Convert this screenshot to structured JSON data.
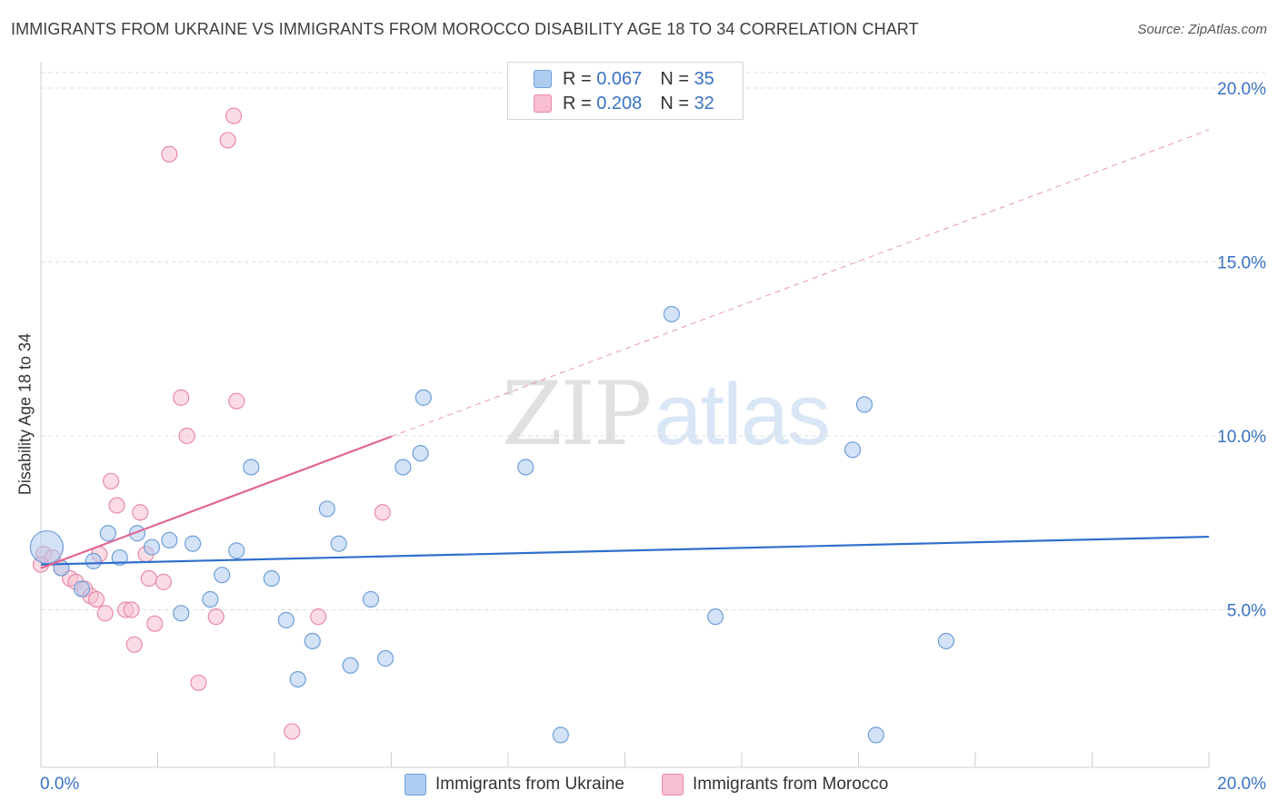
{
  "title": "IMMIGRANTS FROM UKRAINE VS IMMIGRANTS FROM MOROCCO DISABILITY AGE 18 TO 34 CORRELATION CHART",
  "source": "Source: ZipAtlas.com",
  "watermark": {
    "zip": "ZIP",
    "atlas": "atlas"
  },
  "colors": {
    "ukraine_fill": "#aecbf0",
    "ukraine_stroke": "#6f9fd8",
    "ukraine_line": "#2f6fcc",
    "morocco_fill": "#f7bfd0",
    "morocco_stroke": "#e88aa8",
    "morocco_line": "#e06694",
    "axis_text": "#3a72c4",
    "grid": "#dcdcdc"
  },
  "legend": {
    "rows": [
      {
        "r_label": "R = ",
        "r_value": "0.067",
        "n_label": "N = ",
        "n_value": "35"
      },
      {
        "r_label": "R = ",
        "r_value": "0.208",
        "n_label": "N = ",
        "n_value": "32"
      }
    ]
  },
  "bottom_legend": {
    "ukraine": "Immigrants from Ukraine",
    "morocco": "Immigrants from Morocco"
  },
  "chart_data": {
    "type": "scatter",
    "title": "IMMIGRANTS FROM UKRAINE VS IMMIGRANTS FROM MOROCCO DISABILITY AGE 18 TO 34 CORRELATION CHART",
    "ylabel": "Disability Age 18 to 34",
    "xlabel": "",
    "xlim": [
      0,
      20
    ],
    "ylim": [
      0,
      20
    ],
    "x_tick_labels": [
      {
        "value": 0,
        "label": "0.0%"
      },
      {
        "value": 20,
        "label": "20.0%"
      }
    ],
    "y_tick_labels": [
      {
        "value": 5,
        "label": "5.0%"
      },
      {
        "value": 10,
        "label": "10.0%"
      },
      {
        "value": 15,
        "label": "15.0%"
      },
      {
        "value": 20,
        "label": "20.0%"
      }
    ],
    "grid": true,
    "legend_position": "top-center",
    "series": [
      {
        "name": "Immigrants from Ukraine",
        "r": 0.067,
        "n": 35,
        "trend": {
          "x": [
            0,
            20
          ],
          "y": [
            6.3,
            7.1
          ],
          "dashed_from": null
        },
        "points": [
          {
            "x": 0.1,
            "y": 6.8,
            "big": true
          },
          {
            "x": 0.35,
            "y": 6.2
          },
          {
            "x": 0.7,
            "y": 5.6
          },
          {
            "x": 0.9,
            "y": 6.4
          },
          {
            "x": 1.15,
            "y": 7.2
          },
          {
            "x": 1.35,
            "y": 6.5
          },
          {
            "x": 1.65,
            "y": 7.2
          },
          {
            "x": 1.9,
            "y": 6.8
          },
          {
            "x": 2.2,
            "y": 7.0
          },
          {
            "x": 2.4,
            "y": 4.9
          },
          {
            "x": 2.6,
            "y": 6.9
          },
          {
            "x": 2.9,
            "y": 5.3
          },
          {
            "x": 3.1,
            "y": 6.0
          },
          {
            "x": 3.35,
            "y": 6.7
          },
          {
            "x": 3.6,
            "y": 9.1
          },
          {
            "x": 3.95,
            "y": 5.9
          },
          {
            "x": 4.2,
            "y": 4.7
          },
          {
            "x": 4.4,
            "y": 3.0
          },
          {
            "x": 4.65,
            "y": 4.1
          },
          {
            "x": 4.9,
            "y": 7.9
          },
          {
            "x": 5.1,
            "y": 6.9
          },
          {
            "x": 5.3,
            "y": 3.4
          },
          {
            "x": 5.65,
            "y": 5.3
          },
          {
            "x": 5.9,
            "y": 3.6
          },
          {
            "x": 6.2,
            "y": 9.1
          },
          {
            "x": 6.5,
            "y": 9.5
          },
          {
            "x": 6.55,
            "y": 11.1
          },
          {
            "x": 8.3,
            "y": 9.1
          },
          {
            "x": 8.9,
            "y": 1.4
          },
          {
            "x": 10.8,
            "y": 13.5
          },
          {
            "x": 11.55,
            "y": 4.8
          },
          {
            "x": 13.9,
            "y": 9.6
          },
          {
            "x": 14.1,
            "y": 10.9
          },
          {
            "x": 14.3,
            "y": 1.4
          },
          {
            "x": 15.5,
            "y": 4.1
          }
        ]
      },
      {
        "name": "Immigrants from Morocco",
        "r": 0.208,
        "n": 32,
        "trend": {
          "x": [
            0,
            20
          ],
          "y": [
            6.2,
            18.8
          ],
          "dashed_from": 6.0
        },
        "points": [
          {
            "x": 0.05,
            "y": 6.6
          },
          {
            "x": 0.2,
            "y": 6.5
          },
          {
            "x": 0.35,
            "y": 6.2
          },
          {
            "x": 0.5,
            "y": 5.9
          },
          {
            "x": 0.6,
            "y": 5.8
          },
          {
            "x": 0.75,
            "y": 5.6
          },
          {
            "x": 0.85,
            "y": 5.4
          },
          {
            "x": 0.95,
            "y": 5.3
          },
          {
            "x": 1.0,
            "y": 6.6
          },
          {
            "x": 1.1,
            "y": 4.9
          },
          {
            "x": 1.2,
            "y": 8.7
          },
          {
            "x": 1.3,
            "y": 8.0
          },
          {
            "x": 1.45,
            "y": 5.0
          },
          {
            "x": 1.55,
            "y": 5.0
          },
          {
            "x": 1.6,
            "y": 4.0
          },
          {
            "x": 1.7,
            "y": 7.8
          },
          {
            "x": 1.8,
            "y": 6.6
          },
          {
            "x": 1.85,
            "y": 5.9
          },
          {
            "x": 1.95,
            "y": 4.6
          },
          {
            "x": 2.1,
            "y": 5.8
          },
          {
            "x": 2.2,
            "y": 18.1
          },
          {
            "x": 2.4,
            "y": 11.1
          },
          {
            "x": 2.5,
            "y": 10.0
          },
          {
            "x": 2.7,
            "y": 2.9
          },
          {
            "x": 3.0,
            "y": 4.8
          },
          {
            "x": 3.2,
            "y": 18.5
          },
          {
            "x": 3.3,
            "y": 19.2
          },
          {
            "x": 3.35,
            "y": 11.0
          },
          {
            "x": 4.3,
            "y": 1.5
          },
          {
            "x": 4.75,
            "y": 4.8
          },
          {
            "x": 5.85,
            "y": 7.8
          },
          {
            "x": 0.0,
            "y": 6.3
          }
        ]
      }
    ]
  }
}
